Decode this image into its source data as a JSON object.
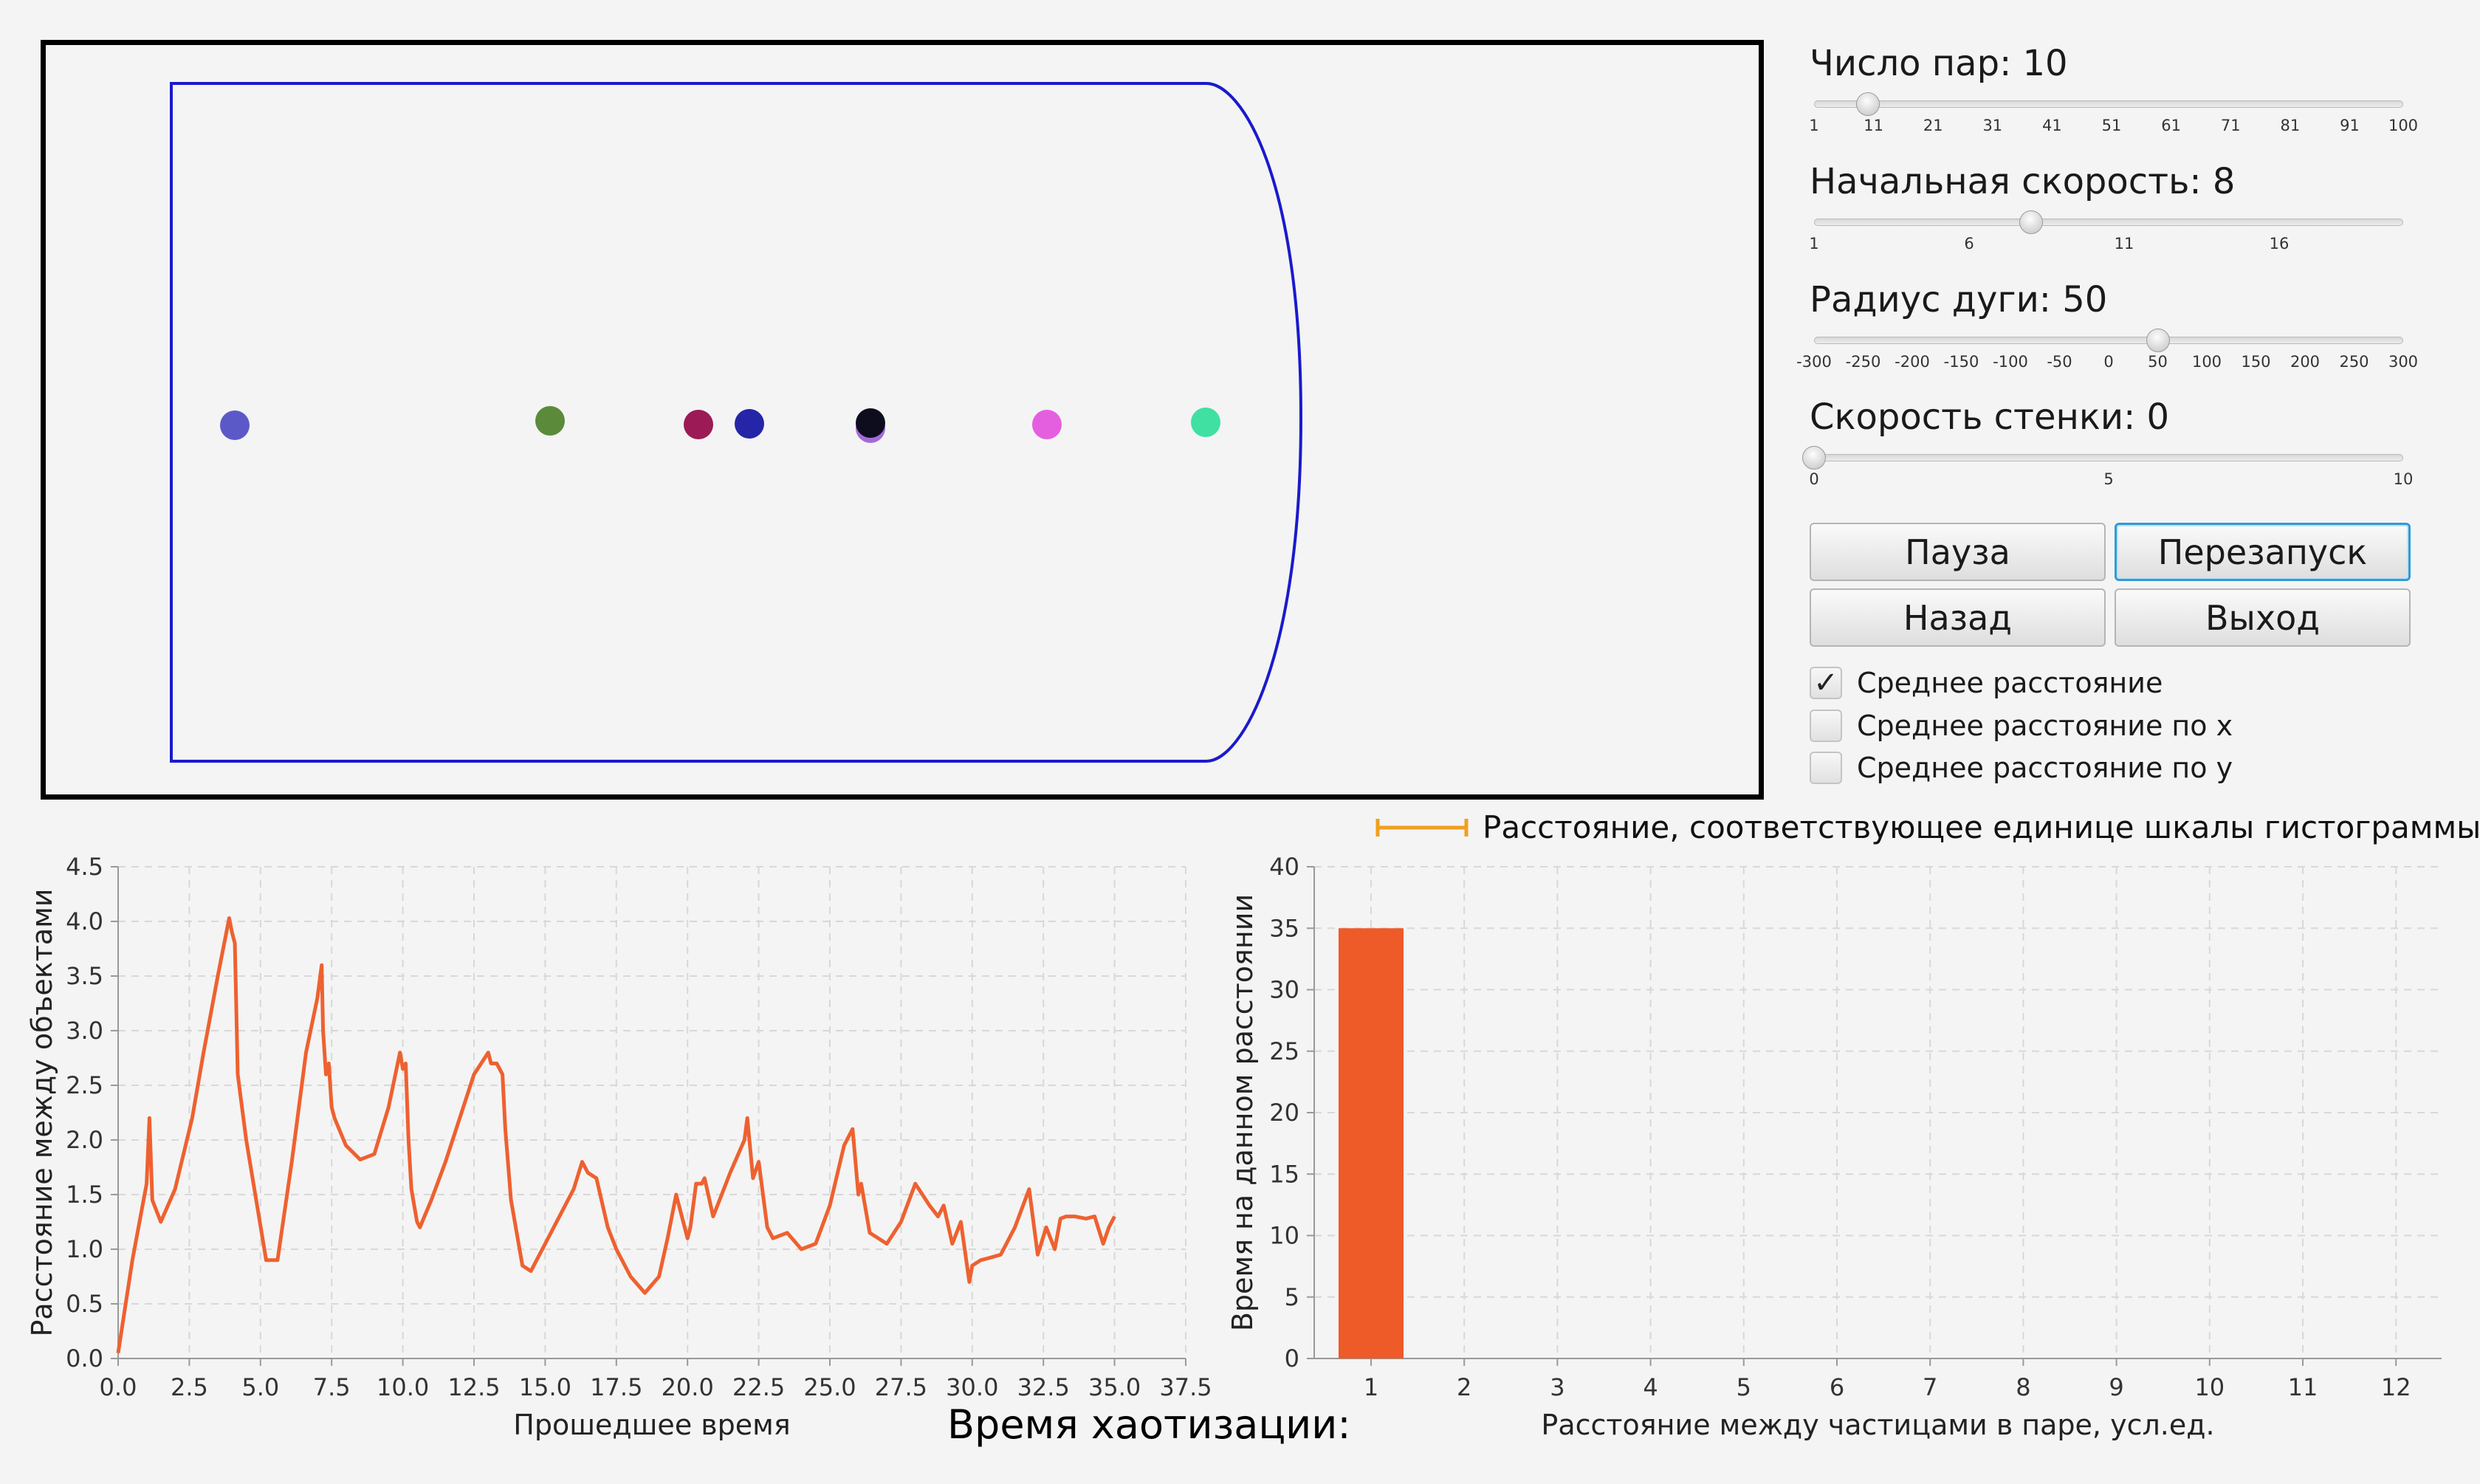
{
  "simulation": {
    "particles": [
      {
        "color": "#5b59c8"
      },
      {
        "color": "#5a8a3a"
      },
      {
        "color": "#9c1a55"
      },
      {
        "color": "#2525a8"
      },
      {
        "color": "#a46ad8"
      },
      {
        "color": "#0d0d1e"
      },
      {
        "color": "#e45fe0"
      },
      {
        "color": "#3fe0a2"
      }
    ],
    "wall_color": "#1a1acc",
    "frame_color": "#000000"
  },
  "controls": {
    "sliders": [
      {
        "label": "Число пар: ",
        "value": "10",
        "min": 1,
        "max": 100,
        "current": 10,
        "ticks": [
          "1",
          "11",
          "21",
          "31",
          "41",
          "51",
          "61",
          "71",
          "81",
          "91",
          "100"
        ]
      },
      {
        "label": "Начальная скорость: ",
        "value": "8",
        "min": 1,
        "max": 20,
        "current": 8,
        "ticks": [
          "1",
          "6",
          "11",
          "16"
        ]
      },
      {
        "label": "Радиус дуги: ",
        "value": "50",
        "min": -300,
        "max": 300,
        "current": 50,
        "ticks": [
          "-300",
          "-250",
          "-200",
          "-150",
          "-100",
          "-50",
          "0",
          "50",
          "100",
          "150",
          "200",
          "250",
          "300"
        ]
      },
      {
        "label": "Скорость стенки: ",
        "value": "0",
        "min": 0,
        "max": 10,
        "current": 0,
        "ticks": [
          "0",
          "5",
          "10"
        ]
      }
    ],
    "buttons": {
      "pause": "Пауза",
      "restart": "Перезапуск",
      "back": "Назад",
      "exit": "Выход"
    },
    "checkboxes": [
      {
        "label": "Среднее расстояние",
        "checked": true
      },
      {
        "label": "Среднее расстояние по x",
        "checked": false
      },
      {
        "label": "Среднее расстояние по y",
        "checked": false
      }
    ]
  },
  "histogram_legend": {
    "text": "Расстояние, соответствующее единице шкалы гистограммы",
    "color": "#f0a020"
  },
  "chaotization_label": "Время хаотизации:",
  "chart_data": [
    {
      "type": "line",
      "xlabel": "Прошедшее время",
      "ylabel": "Расстояние между объектами",
      "xlim": [
        0,
        37.5
      ],
      "ylim": [
        0,
        4.5
      ],
      "xticks": [
        "0.0",
        "2.5",
        "5.0",
        "7.5",
        "10.0",
        "12.5",
        "15.0",
        "17.5",
        "20.0",
        "22.5",
        "25.0",
        "27.5",
        "30.0",
        "32.5",
        "35.0",
        "37.5"
      ],
      "yticks": [
        "0.0",
        "0.5",
        "1.0",
        "1.5",
        "2.0",
        "2.5",
        "3.0",
        "3.5",
        "4.0",
        "4.5"
      ],
      "grid": true,
      "color": "#ee6130",
      "series": [
        {
          "x": [
            0,
            0.5,
            1.0,
            1.1,
            1.2,
            1.5,
            2.0,
            2.6,
            3.0,
            3.5,
            3.9,
            4.0,
            4.1,
            4.2,
            4.3,
            4.5,
            5.2,
            5.6,
            6.1,
            6.6,
            7.0,
            7.15,
            7.2,
            7.3,
            7.4,
            7.5,
            7.6,
            8.0,
            8.5,
            9.0,
            9.5,
            9.9,
            10.0,
            10.1,
            10.2,
            10.3,
            10.4,
            10.5,
            10.6,
            11.0,
            11.5,
            12.0,
            12.5,
            13.0,
            13.1,
            13.3,
            13.5,
            13.6,
            13.8,
            13.9,
            14.2,
            14.5,
            15.0,
            15.5,
            16.0,
            16.3,
            16.5,
            16.8,
            17.2,
            17.5,
            18.0,
            18.5,
            19.0,
            19.3,
            19.6,
            20.0,
            20.1,
            20.3,
            20.5,
            20.6,
            20.9,
            21.2,
            21.5,
            22.0,
            22.1,
            22.3,
            22.5,
            22.6,
            22.8,
            23.0,
            23.5,
            24.0,
            24.5,
            25.0,
            25.5,
            25.8,
            26.0,
            26.1,
            26.4,
            26.7,
            27.0,
            27.5,
            28.0,
            28.5,
            28.8,
            29.0,
            29.3,
            29.6,
            29.9,
            30.0,
            30.3,
            30.6,
            31.0,
            31.5,
            32.0,
            32.3,
            32.6,
            32.9,
            33.1,
            33.3,
            33.6,
            34.0,
            34.3,
            34.6,
            34.8,
            35.0
          ],
          "y": [
            0.05,
            0.9,
            1.6,
            2.2,
            1.45,
            1.25,
            1.55,
            2.2,
            2.8,
            3.5,
            4.03,
            3.9,
            3.8,
            2.6,
            2.4,
            2.0,
            0.9,
            0.9,
            1.8,
            2.8,
            3.3,
            3.6,
            3.0,
            2.6,
            2.7,
            2.3,
            2.2,
            1.95,
            1.82,
            1.87,
            2.3,
            2.8,
            2.65,
            2.7,
            2.0,
            1.55,
            1.4,
            1.25,
            1.2,
            1.45,
            1.8,
            2.2,
            2.6,
            2.8,
            2.7,
            2.7,
            2.6,
            2.1,
            1.45,
            1.3,
            0.85,
            0.8,
            1.05,
            1.3,
            1.55,
            1.8,
            1.7,
            1.65,
            1.2,
            1.0,
            0.75,
            0.6,
            0.75,
            1.1,
            1.5,
            1.1,
            1.2,
            1.6,
            1.6,
            1.65,
            1.3,
            1.5,
            1.7,
            2.0,
            2.2,
            1.65,
            1.8,
            1.6,
            1.2,
            1.1,
            1.15,
            1.0,
            1.05,
            1.4,
            1.95,
            2.1,
            1.5,
            1.6,
            1.15,
            1.1,
            1.05,
            1.25,
            1.6,
            1.4,
            1.3,
            1.4,
            1.05,
            1.25,
            0.7,
            0.85,
            0.9,
            0.92,
            0.95,
            1.2,
            1.55,
            0.95,
            1.2,
            1.0,
            1.28,
            1.3,
            1.3,
            1.28,
            1.3,
            1.05,
            1.2,
            1.3
          ]
        }
      ]
    },
    {
      "type": "bar",
      "xlabel": "Расстояние между частицами в паре, усл.ед.",
      "ylabel": "Время на данном расстоянии",
      "categories": [
        "1",
        "2",
        "3",
        "4",
        "5",
        "6",
        "7",
        "8",
        "9",
        "10",
        "11",
        "12"
      ],
      "values": [
        35,
        0,
        0,
        0,
        0,
        0,
        0,
        0,
        0,
        0,
        0,
        0
      ],
      "ylim": [
        0,
        40
      ],
      "yticks": [
        "0",
        "5",
        "10",
        "15",
        "20",
        "25",
        "30",
        "35",
        "40"
      ],
      "grid": true,
      "color": "#ee5a28"
    }
  ]
}
